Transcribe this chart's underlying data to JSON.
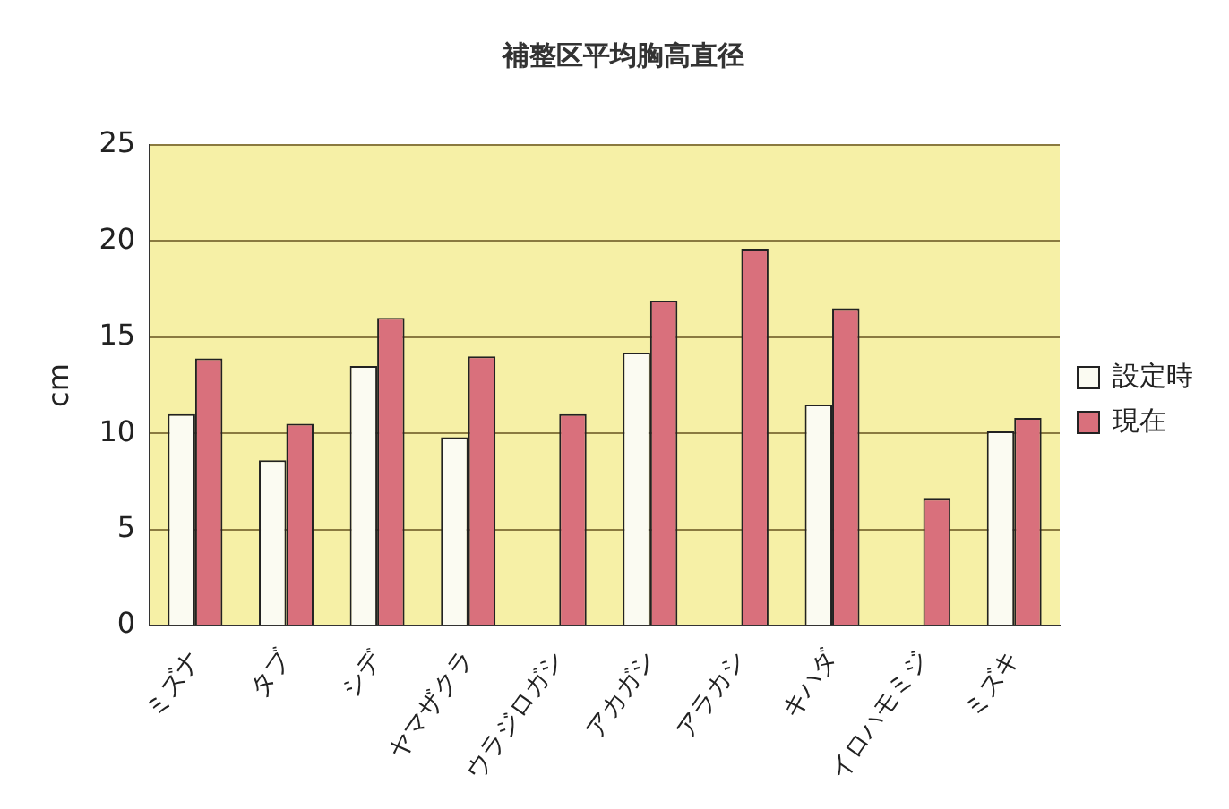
{
  "chart_data": {
    "type": "bar",
    "title": "補整区平均胸高直径",
    "ylabel": "cm",
    "categories": [
      "ミズナ",
      "タブ",
      "シデ",
      "ヤマザクラ",
      "ウラジロガシ",
      "アカガシ",
      "アラカシ",
      "キハダ",
      "イロハモミジ",
      "ミズキ"
    ],
    "series": [
      {
        "name": "設定時",
        "color": "#fbfbf2",
        "values": [
          11,
          8.6,
          13.5,
          9.8,
          null,
          14.2,
          null,
          11.5,
          null,
          10.1
        ]
      },
      {
        "name": "現在",
        "color": "#d9707c",
        "values": [
          13.9,
          10.5,
          16,
          14,
          11,
          16.9,
          19.6,
          16.5,
          6.6,
          10.8
        ]
      }
    ],
    "ylim": [
      0,
      25
    ],
    "yticks": [
      0,
      5,
      10,
      15,
      20,
      25
    ],
    "grid": "y",
    "legend": "right"
  }
}
